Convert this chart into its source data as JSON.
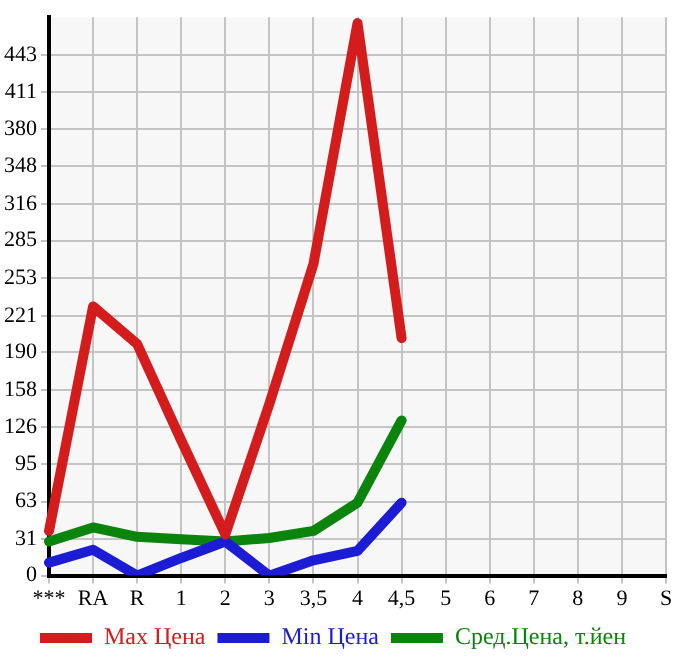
{
  "chart_data": {
    "type": "line",
    "categories": [
      "***",
      "RA",
      "R",
      "1",
      "2",
      "3",
      "3,5",
      "4",
      "4,5",
      "5",
      "6",
      "7",
      "8",
      "9",
      "S"
    ],
    "series": [
      {
        "name": "Max Цена",
        "color": "#d41c1c",
        "values": [
          38,
          229,
          197,
          115,
          35,
          146,
          265,
          470,
          202,
          null,
          null,
          null,
          null,
          null,
          null
        ]
      },
      {
        "name": "Min Цена",
        "color": "#1c1cd4",
        "values": [
          11,
          22,
          0,
          15,
          29,
          0,
          13,
          21,
          62,
          null,
          null,
          null,
          null,
          null,
          null
        ]
      },
      {
        "name": "Сред.Цена, т.йен",
        "color": "#0a840a",
        "values": [
          29,
          41,
          33,
          31,
          29,
          32,
          38,
          62,
          132,
          null,
          null,
          null,
          null,
          null,
          null
        ]
      }
    ],
    "ylim": [
      0,
      475
    ],
    "yticks": [
      0,
      31,
      63,
      95,
      126,
      158,
      190,
      221,
      253,
      285,
      316,
      348,
      380,
      411,
      443
    ],
    "grid": true,
    "legend": "bottom",
    "marker": "none",
    "line_style": "solid"
  }
}
